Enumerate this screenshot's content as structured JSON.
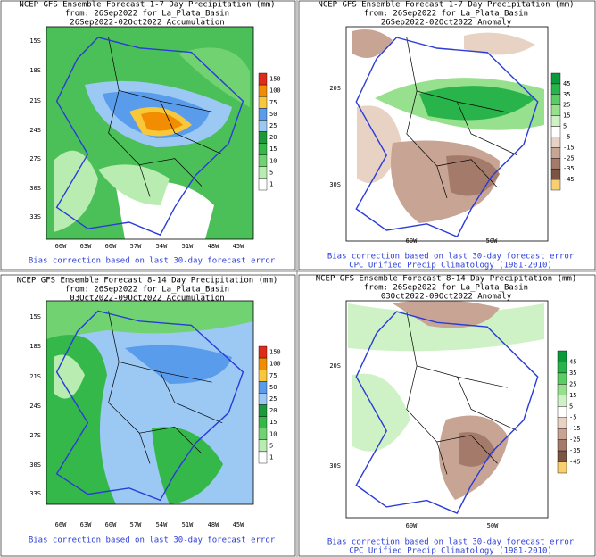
{
  "panels": [
    {
      "title_lines": [
        "NCEP GFS Ensemble Forecast 1-7 Day Precipitation (mm)",
        "from: 26Sep2022   for La_Plata_Basin",
        "26Sep2022-02Oct2022 Accumulation"
      ],
      "lat_labels": [
        "15S",
        "18S",
        "21S",
        "24S",
        "27S",
        "30S",
        "33S"
      ],
      "lon_labels": [
        "66W",
        "63W",
        "60W",
        "57W",
        "54W",
        "51W",
        "48W",
        "45W"
      ],
      "colorbar": [
        150,
        100,
        75,
        50,
        25,
        20,
        15,
        10,
        5,
        1
      ],
      "colorbar_colors": [
        "#e02a1a",
        "#f28c00",
        "#f8c83a",
        "#5a9cec",
        "#9cc8f4",
        "#1c9a3a",
        "#34b84a",
        "#70d270",
        "#b8ecb0",
        "#ffffff"
      ],
      "footer": [
        "Bias correction based on last 30-day forecast error"
      ]
    },
    {
      "title_lines": [
        "NCEP GFS Ensemble Forecast 1-7 Day Precipitation (mm)",
        "from: 26Sep2022   for La_Plata_Basin",
        "26Sep2022-02Oct2022 Anomaly"
      ],
      "lat_labels": [
        "20S",
        "30S"
      ],
      "lon_labels": [
        "60W",
        "50W"
      ],
      "colorbar": [
        45,
        35,
        25,
        15,
        5,
        -5,
        -15,
        -25,
        -35,
        -45
      ],
      "colorbar_colors": [
        "#0a9a3c",
        "#28b44a",
        "#5ccc64",
        "#96e08e",
        "#cef2c6",
        "#ffffff",
        "#e8d2c4",
        "#c8a494",
        "#a47a6a",
        "#7a5444",
        "#f8d070"
      ],
      "footer": [
        "Bias correction based on last 30-day forecast error",
        "CPC Unified Precip Climatology (1981-2010)"
      ]
    },
    {
      "title_lines": [
        "NCEP GFS Ensemble Forecast 8-14 Day Precipitation (mm)",
        "from: 26Sep2022   for La_Plata_Basin",
        "03Oct2022-09Oct2022 Accumulation"
      ],
      "lat_labels": [
        "15S",
        "18S",
        "21S",
        "24S",
        "27S",
        "30S",
        "33S"
      ],
      "lon_labels": [
        "66W",
        "63W",
        "60W",
        "57W",
        "54W",
        "51W",
        "48W",
        "45W"
      ],
      "colorbar": [
        150,
        100,
        75,
        50,
        25,
        20,
        15,
        10,
        5,
        1
      ],
      "colorbar_colors": [
        "#e02a1a",
        "#f28c00",
        "#f8c83a",
        "#5a9cec",
        "#9cc8f4",
        "#1c9a3a",
        "#34b84a",
        "#70d270",
        "#b8ecb0",
        "#ffffff"
      ],
      "footer": [
        "Bias correction based on last 30-day forecast error"
      ]
    },
    {
      "title_lines": [
        "NCEP GFS Ensemble Forecast 8-14 Day Precipitation (mm)",
        "from: 26Sep2022   for La_Plata_Basin",
        "03Oct2022-09Oct2022 Anomaly"
      ],
      "lat_labels": [
        "20S",
        "30S"
      ],
      "lon_labels": [
        "60W",
        "50W"
      ],
      "colorbar": [
        45,
        35,
        25,
        15,
        5,
        -5,
        -15,
        -25,
        -35,
        -45
      ],
      "colorbar_colors": [
        "#0a9a3c",
        "#28b44a",
        "#5ccc64",
        "#96e08e",
        "#cef2c6",
        "#ffffff",
        "#e8d2c4",
        "#c8a494",
        "#a47a6a",
        "#7a5444",
        "#f8d070"
      ],
      "footer": [
        "Bias correction based on last 30-day forecast error",
        "CPC Unified Precip Climatology (1981-2010)"
      ]
    }
  ]
}
